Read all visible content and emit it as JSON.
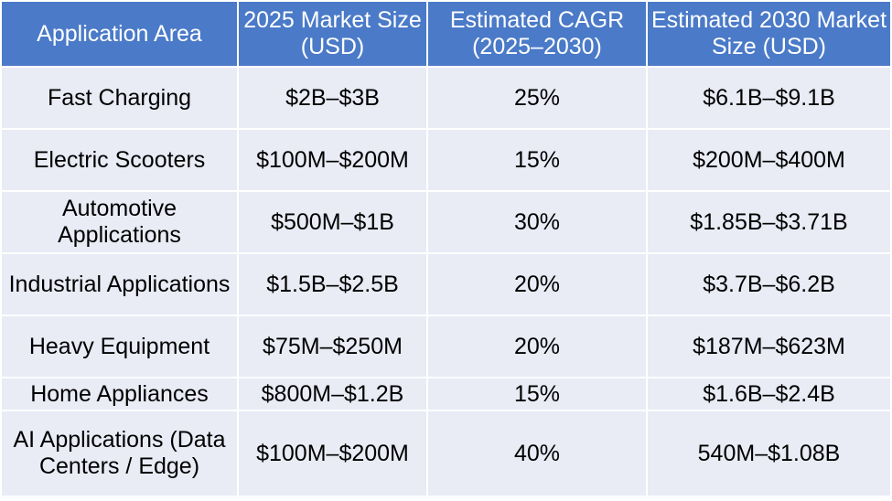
{
  "table": {
    "headers": [
      "Application Area",
      "2025 Market Size (USD)",
      "Estimated CAGR (2025–2030)",
      "Estimated 2030 Market Size (USD)"
    ],
    "rows": [
      [
        "Fast Charging",
        "$2B–$3B",
        "25%",
        "$6.1B–$9.1B"
      ],
      [
        "Electric Scooters",
        "$100M–$200M",
        "15%",
        "$200M–$400M"
      ],
      [
        "Automotive Applications",
        "$500M–$1B",
        "30%",
        "$1.85B–$3.71B"
      ],
      [
        "Industrial Applications",
        "$1.5B–$2.5B",
        "20%",
        "$3.7B–$6.2B"
      ],
      [
        "Heavy Equipment",
        "$75M–$250M",
        "20%",
        "$187M–$623M"
      ],
      [
        "Home Appliances",
        "$800M–$1.2B",
        "15%",
        "$1.6B–$2.4B"
      ],
      [
        "AI Applications (Data Centers / Edge)",
        "$100M–$200M",
        "40%",
        "540M–$1.08B"
      ]
    ]
  },
  "colors": {
    "header_bg": "#4a7ac8",
    "cell_bg": "#e9ebf5",
    "border": "#ffffff"
  }
}
